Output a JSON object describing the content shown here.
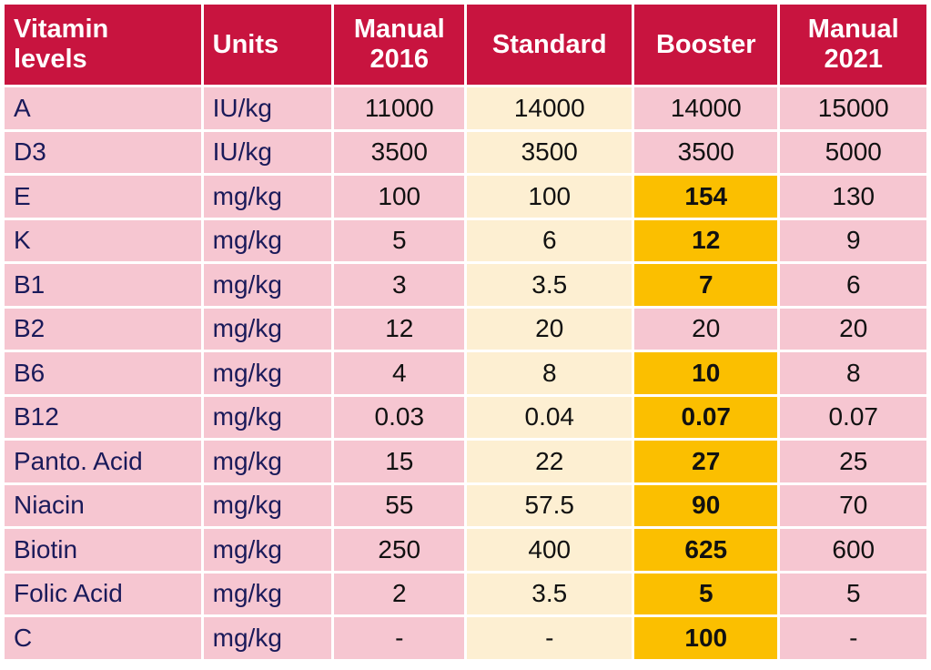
{
  "table": {
    "headers": [
      "Vitamin levels",
      "Units",
      "Manual 2016",
      "Standard",
      "Booster",
      "Manual 2021"
    ],
    "header_lines": [
      [
        "Vitamin",
        "levels"
      ],
      [
        "Units"
      ],
      [
        "Manual",
        "2016"
      ],
      [
        "Standard"
      ],
      [
        "Booster"
      ],
      [
        "Manual",
        "2021"
      ]
    ],
    "rows": [
      {
        "vitamin": "A",
        "units": "IU/kg",
        "manual_2016": "11000",
        "standard": "14000",
        "booster": "14000",
        "manual_2021": "15000",
        "booster_highlight": false
      },
      {
        "vitamin": "D3",
        "units": "IU/kg",
        "manual_2016": "3500",
        "standard": "3500",
        "booster": "3500",
        "manual_2021": "5000",
        "booster_highlight": false
      },
      {
        "vitamin": "E",
        "units": "mg/kg",
        "manual_2016": "100",
        "standard": "100",
        "booster": "154",
        "manual_2021": "130",
        "booster_highlight": true
      },
      {
        "vitamin": "K",
        "units": "mg/kg",
        "manual_2016": "5",
        "standard": "6",
        "booster": "12",
        "manual_2021": "9",
        "booster_highlight": true
      },
      {
        "vitamin": "B1",
        "units": "mg/kg",
        "manual_2016": "3",
        "standard": "3.5",
        "booster": "7",
        "manual_2021": "6",
        "booster_highlight": true
      },
      {
        "vitamin": "B2",
        "units": "mg/kg",
        "manual_2016": "12",
        "standard": "20",
        "booster": "20",
        "manual_2021": "20",
        "booster_highlight": false
      },
      {
        "vitamin": "B6",
        "units": "mg/kg",
        "manual_2016": "4",
        "standard": "8",
        "booster": "10",
        "manual_2021": "8",
        "booster_highlight": true
      },
      {
        "vitamin": "B12",
        "units": "mg/kg",
        "manual_2016": "0.03",
        "standard": "0.04",
        "booster": "0.07",
        "manual_2021": "0.07",
        "booster_highlight": true
      },
      {
        "vitamin": "Panto. Acid",
        "units": "mg/kg",
        "manual_2016": "15",
        "standard": "22",
        "booster": "27",
        "manual_2021": "25",
        "booster_highlight": true
      },
      {
        "vitamin": "Niacin",
        "units": "mg/kg",
        "manual_2016": "55",
        "standard": "57.5",
        "booster": "90",
        "manual_2021": "70",
        "booster_highlight": true
      },
      {
        "vitamin": "Biotin",
        "units": "mg/kg",
        "manual_2016": "250",
        "standard": "400",
        "booster": "625",
        "manual_2021": "600",
        "booster_highlight": true
      },
      {
        "vitamin": "Folic Acid",
        "units": "mg/kg",
        "manual_2016": "2",
        "standard": "3.5",
        "booster": "5",
        "manual_2021": "5",
        "booster_highlight": true
      },
      {
        "vitamin": "C",
        "units": "mg/kg",
        "manual_2016": "-",
        "standard": "-",
        "booster": "100",
        "manual_2021": "-",
        "booster_highlight": true
      }
    ]
  },
  "colors": {
    "header_bg": "#c8143f",
    "header_text": "#ffffff",
    "pink_cell": "#f6c6d1",
    "cream_cell": "#fdefd2",
    "highlight_cell": "#fbbf00"
  }
}
